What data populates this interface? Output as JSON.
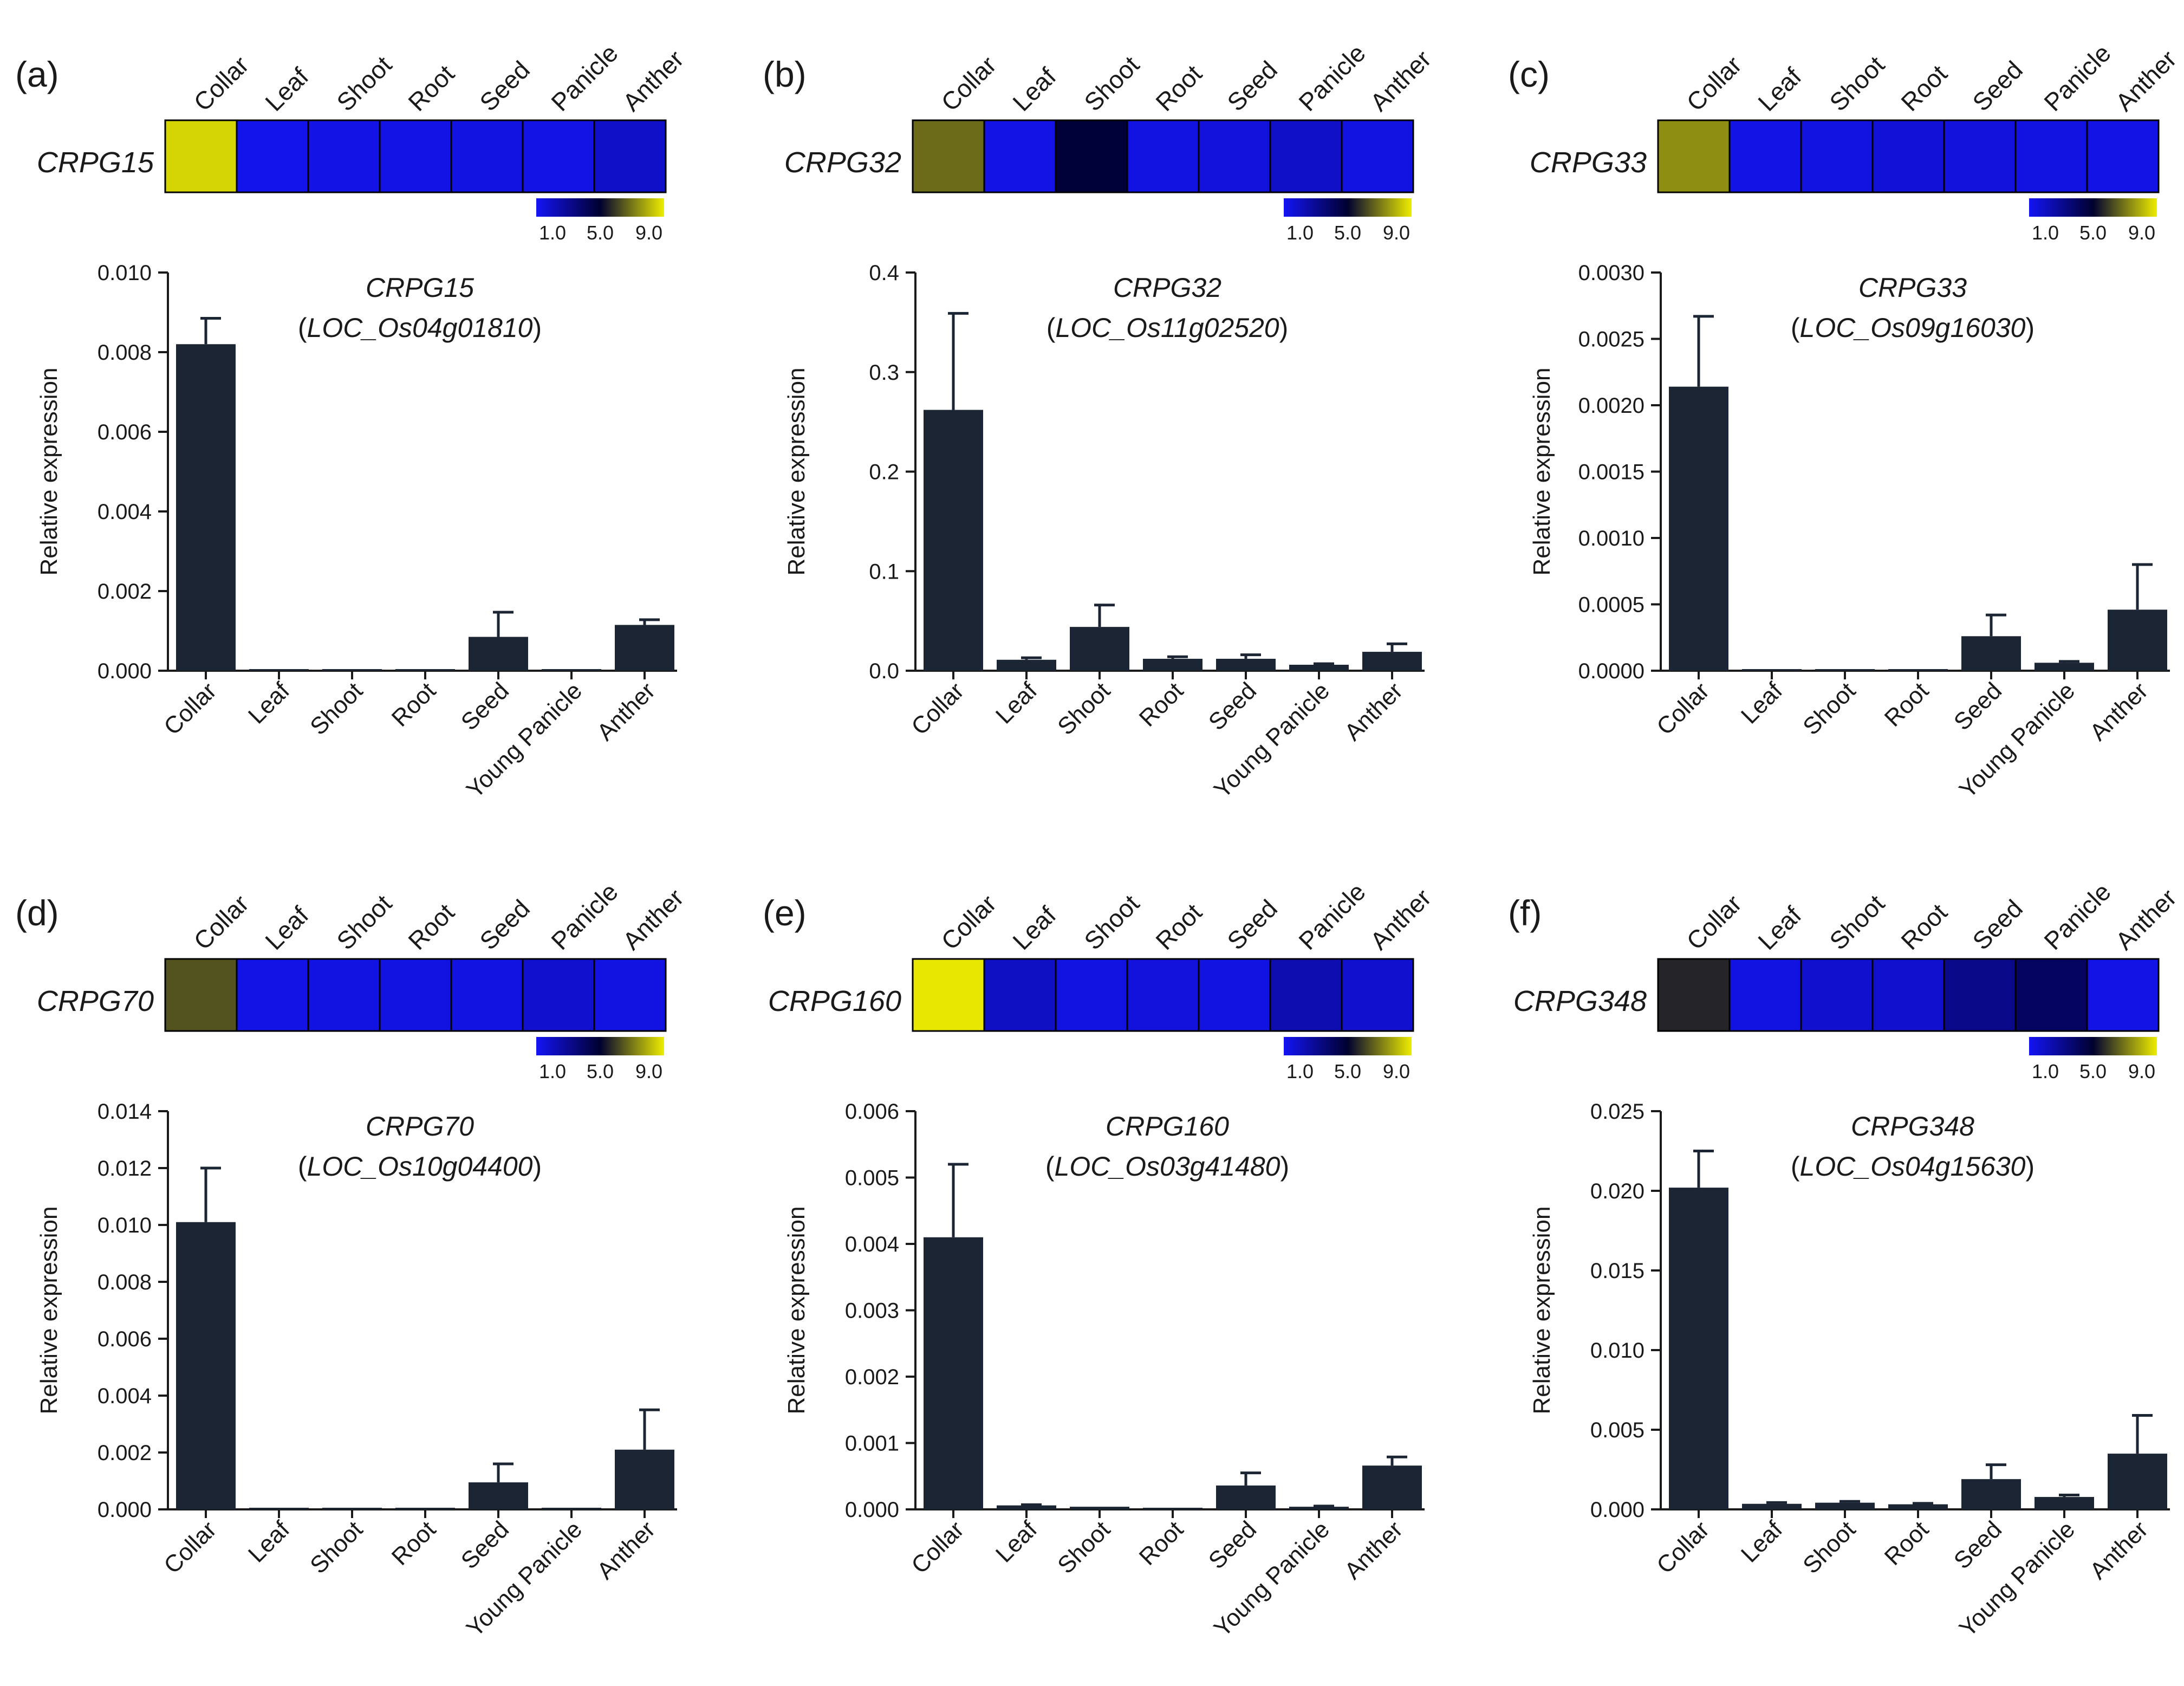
{
  "colors": {
    "bar": "#1b2533",
    "error": "#1b2533",
    "axis": "#1a1a1a",
    "heat_low": "#1414f5",
    "heat_mid": "#000030",
    "heat_high": "#eded00"
  },
  "heatmap_legend": {
    "ticks": [
      "1.0",
      "5.0",
      "9.0"
    ],
    "min": 1.0,
    "mid": 5.0,
    "max": 9.0
  },
  "heatmap_columns": [
    "Collar",
    "Leaf",
    "Shoot",
    "Root",
    "Seed",
    "Panicle",
    "Anther"
  ],
  "y_axis_label": "Relative expression",
  "chart_data": [
    {
      "type": "bar",
      "panel": "(a)",
      "gene": "CRPG15",
      "title_line1": "CRPG15",
      "title_line2": "LOC_Os04g01810",
      "title": "CRPG15 (LOC_Os04g01810)",
      "heatmap_values": [
        8.6,
        1.2,
        1.3,
        1.3,
        1.4,
        1.3,
        1.9
      ],
      "categories": [
        "Collar",
        "Leaf",
        "Shoot",
        "Root",
        "Seed",
        "Young Panicle",
        "Anther"
      ],
      "values": [
        0.0082,
        2e-05,
        3e-05,
        2e-05,
        0.00085,
        2e-05,
        0.00115
      ],
      "errors": [
        0.00065,
        0.0,
        0.0,
        0.0,
        0.00062,
        0.0,
        0.00013
      ],
      "ylabel": "Relative expression",
      "ylim": [
        0,
        0.01
      ],
      "yticks": [
        "0.000",
        "0.002",
        "0.004",
        "0.006",
        "0.008",
        "0.010"
      ]
    },
    {
      "type": "bar",
      "panel": "(b)",
      "gene": "CRPG32",
      "title_line1": "CRPG32",
      "title_line2": "LOC_Os11g02520",
      "title": "CRPG32 (LOC_Os11g02520)",
      "heatmap_values": [
        6.8,
        1.3,
        4.8,
        1.4,
        1.5,
        1.9,
        1.4
      ],
      "categories": [
        "Collar",
        "Leaf",
        "Shoot",
        "Root",
        "Seed",
        "Young Panicle",
        "Anther"
      ],
      "values": [
        0.262,
        0.011,
        0.044,
        0.012,
        0.012,
        0.006,
        0.019
      ],
      "errors": [
        0.097,
        0.002,
        0.022,
        0.002,
        0.004,
        0.001,
        0.008
      ],
      "ylabel": "Relative expression",
      "ylim": [
        0,
        0.4
      ],
      "yticks": [
        "0.0",
        "0.1",
        "0.2",
        "0.3",
        "0.4"
      ]
    },
    {
      "type": "bar",
      "panel": "(c)",
      "gene": "CRPG33",
      "title_line1": "CRPG33",
      "title_line2": "LOC_Os09g16030",
      "title": "CRPG33 (LOC_Os09g16030)",
      "heatmap_values": [
        7.4,
        1.3,
        1.4,
        1.6,
        1.5,
        1.4,
        1.3
      ],
      "categories": [
        "Collar",
        "Leaf",
        "Shoot",
        "Root",
        "Seed",
        "Young Panicle",
        "Anther"
      ],
      "values": [
        0.00214,
        5e-06,
        8e-06,
        1.2e-05,
        0.00026,
        6e-05,
        0.00046
      ],
      "errors": [
        0.00053,
        0.0,
        0.0,
        0.0,
        0.00016,
        1e-05,
        0.00034
      ],
      "ylabel": "Relative expression",
      "ylim": [
        0,
        0.003
      ],
      "yticks": [
        "0.0000",
        "0.0005",
        "0.0010",
        "0.0015",
        "0.0020",
        "0.0025",
        "0.0030"
      ]
    },
    {
      "type": "bar",
      "panel": "(d)",
      "gene": "CRPG70",
      "title_line1": "CRPG70",
      "title_line2": "LOC_Os10g04400",
      "title": "CRPG70 (LOC_Os10g04400)",
      "heatmap_values": [
        6.4,
        1.3,
        1.4,
        1.4,
        1.4,
        1.8,
        1.4
      ],
      "categories": [
        "Collar",
        "Leaf",
        "Shoot",
        "Root",
        "Seed",
        "Young Panicle",
        "Anther"
      ],
      "values": [
        0.0101,
        3e-05,
        4e-05,
        3e-05,
        0.00095,
        3e-05,
        0.0021
      ],
      "errors": [
        0.0019,
        0.0,
        0.0,
        0.0,
        0.00065,
        0.0,
        0.0014
      ],
      "ylabel": "Relative expression",
      "ylim": [
        0,
        0.014
      ],
      "yticks": [
        "0.000",
        "0.002",
        "0.004",
        "0.006",
        "0.008",
        "0.010",
        "0.012",
        "0.014"
      ]
    },
    {
      "type": "bar",
      "panel": "(e)",
      "gene": "CRPG160",
      "title_line1": "CRPG160",
      "title_line2": "LOC_Os03g41480",
      "title": "CRPG160 (LOC_Os03g41480)",
      "heatmap_values": [
        8.9,
        2.0,
        1.4,
        1.5,
        1.4,
        2.4,
        1.8
      ],
      "categories": [
        "Collar",
        "Leaf",
        "Shoot",
        "Root",
        "Seed",
        "Young Panicle",
        "Anther"
      ],
      "values": [
        0.0041,
        6e-05,
        4e-05,
        2e-05,
        0.00036,
        4e-05,
        0.00066
      ],
      "errors": [
        0.0011,
        1e-05,
        0.0,
        0.0,
        0.00019,
        1e-05,
        0.00013
      ],
      "ylabel": "Relative expression",
      "ylim": [
        0,
        0.006
      ],
      "yticks": [
        "0.000",
        "0.001",
        "0.002",
        "0.003",
        "0.004",
        "0.005",
        "0.006"
      ]
    },
    {
      "type": "bar",
      "panel": "(f)",
      "gene": "CRPG348",
      "title_line1": "CRPG348",
      "title_line2": "LOC_Os04g15630",
      "title": "CRPG348 (LOC_Os04g15630)",
      "heatmap_values": [
        5.6,
        1.4,
        1.8,
        1.8,
        3.2,
        4.0,
        1.3
      ],
      "categories": [
        "Collar",
        "Leaf",
        "Shoot",
        "Root",
        "Seed",
        "Young Panicle",
        "Anther"
      ],
      "values": [
        0.0202,
        0.00035,
        0.00042,
        0.00032,
        0.0019,
        0.00078,
        0.0035
      ],
      "errors": [
        0.0023,
        8e-05,
        8e-05,
        6e-05,
        0.0009,
        0.00012,
        0.0024
      ],
      "ylabel": "Relative expression",
      "ylim": [
        0,
        0.025
      ],
      "yticks": [
        "0.000",
        "0.005",
        "0.010",
        "0.015",
        "0.020",
        "0.025"
      ]
    }
  ]
}
